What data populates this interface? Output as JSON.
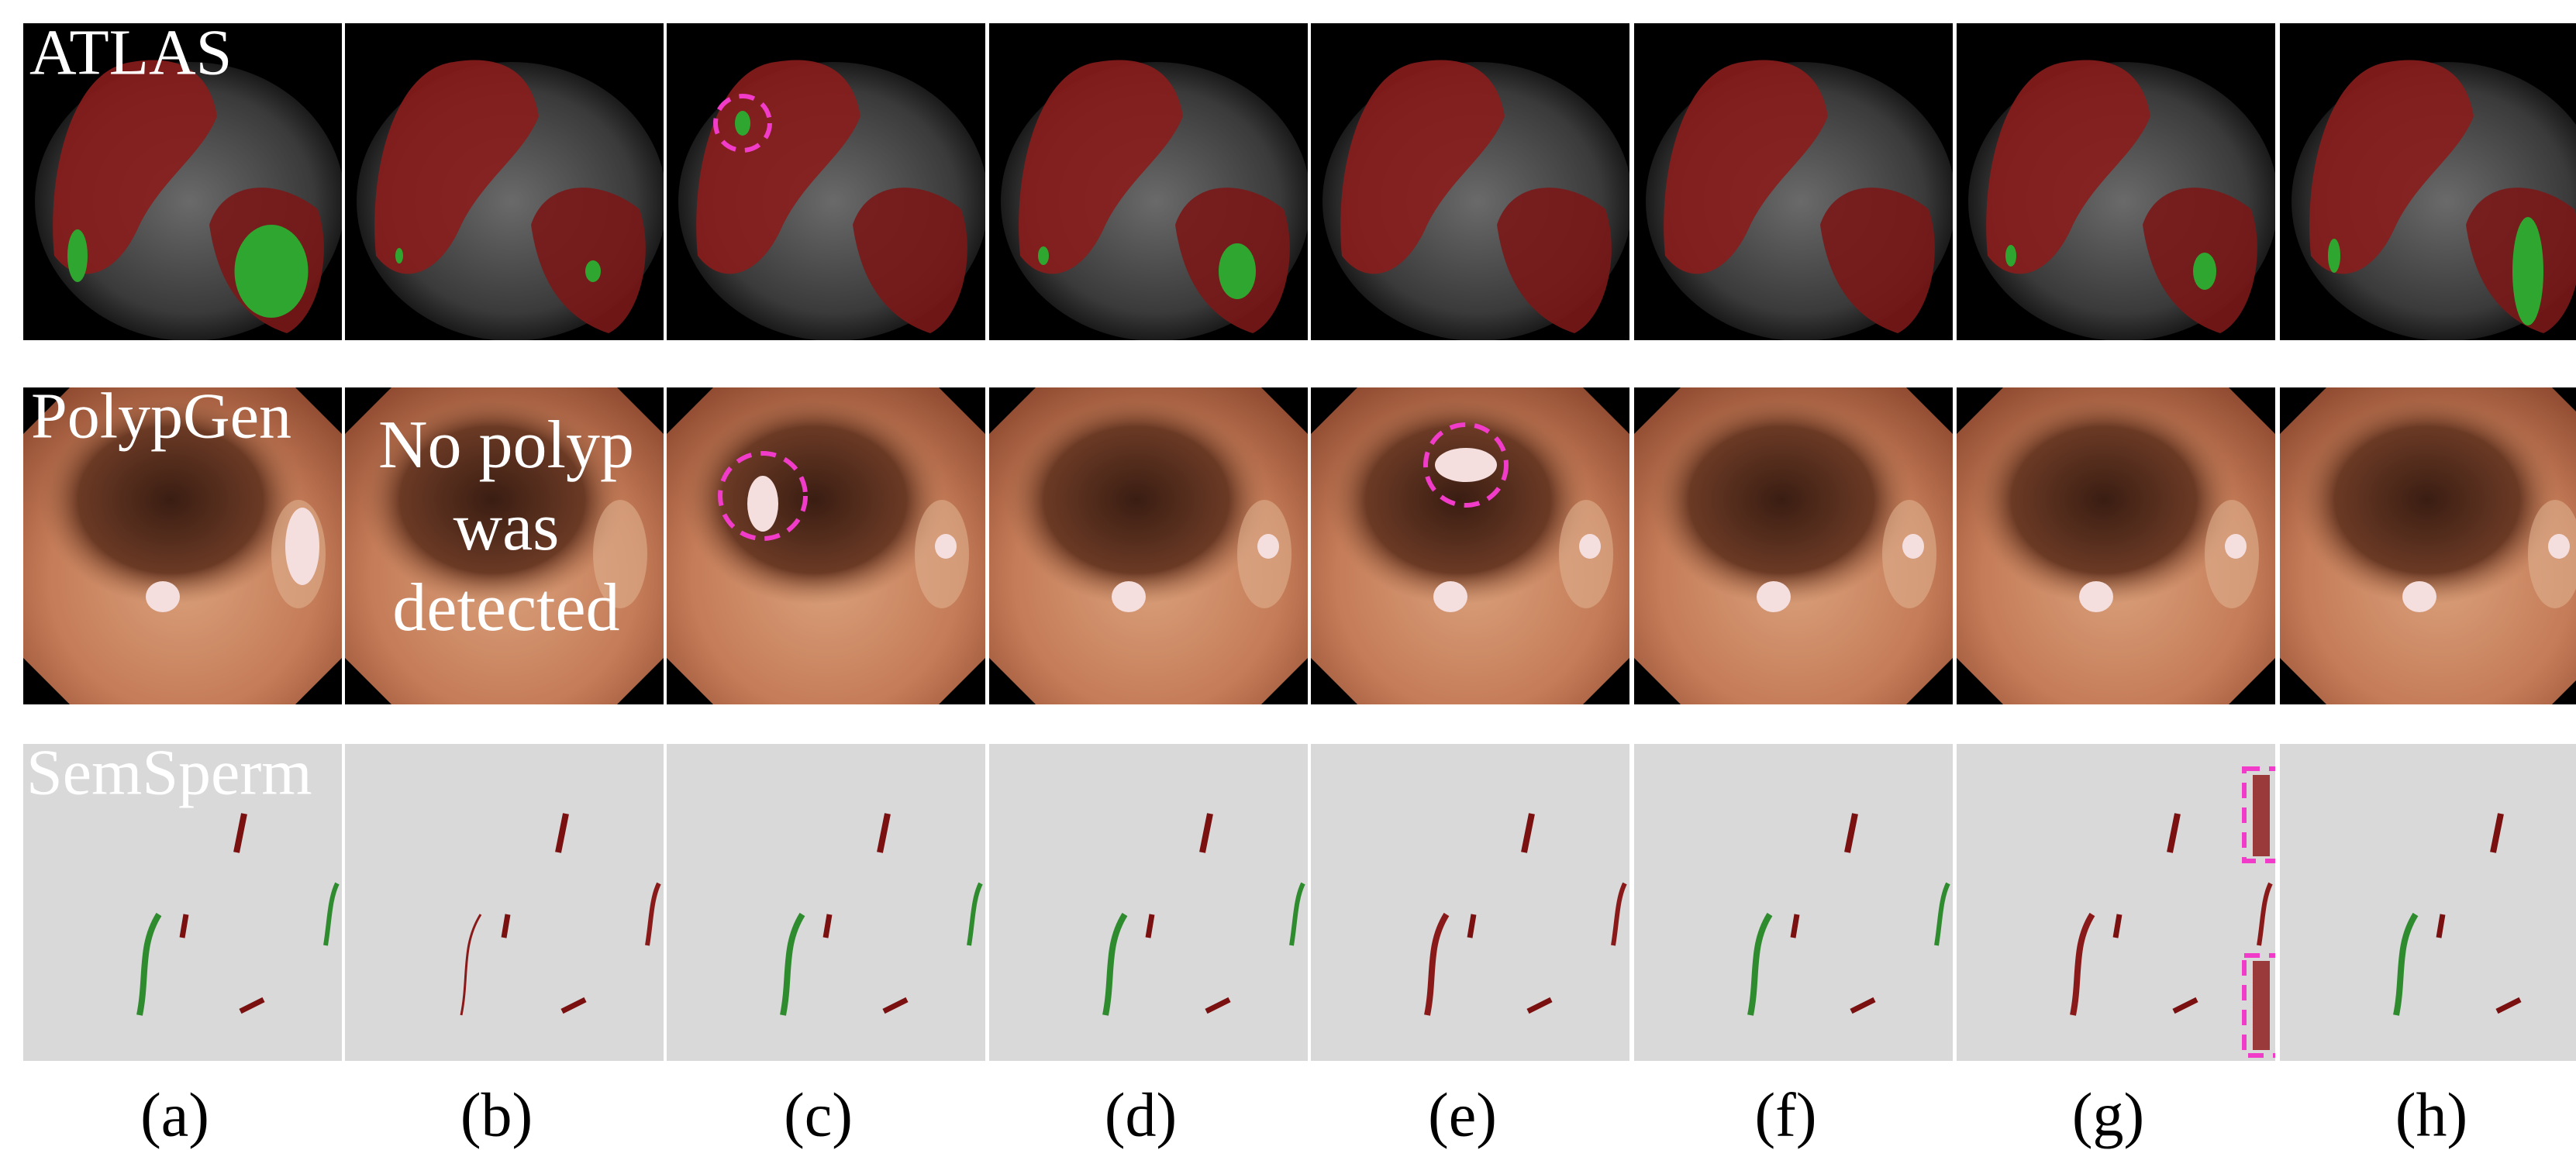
{
  "rows": [
    {
      "label": "ATLAS"
    },
    {
      "label": "PolypGen"
    },
    {
      "label": "SemSperm"
    }
  ],
  "annotation": {
    "lines": [
      "No polyp",
      "was",
      "detected"
    ]
  },
  "columns": [
    "(a)",
    "(b)",
    "(c)",
    "(d)",
    "(e)",
    "(f)",
    "(g)",
    "(h)"
  ]
}
